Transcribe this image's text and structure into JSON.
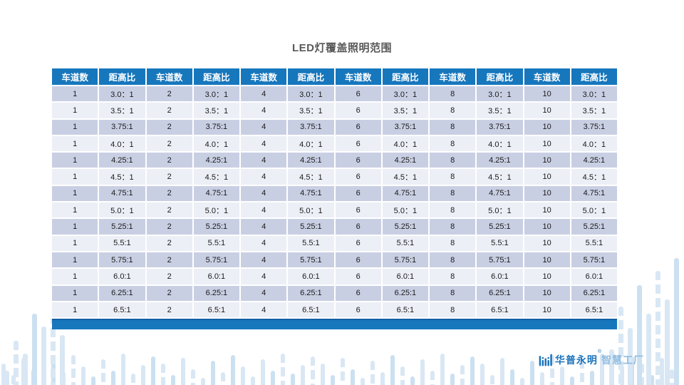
{
  "slide": {
    "title": "LED灯覆盖照明范围"
  },
  "table": {
    "column_headers": [
      "车道数",
      "距高比",
      "车道数",
      "距高比",
      "车道数",
      "距高比",
      "车道数",
      "距高比",
      "车道数",
      "距高比",
      "车道数",
      "距高比"
    ],
    "lane_counts": [
      "1",
      "2",
      "4",
      "6",
      "8",
      "10"
    ],
    "ratio_rows": [
      "3.0：1",
      "3.5：1",
      "3.75:1",
      "4.0：1",
      "4.25:1",
      "4.5：1",
      "4.75:1",
      "5.0：1",
      "5.25:1",
      "5.5:1",
      "5.75:1",
      "6.0:1",
      "6.25:1",
      "6.5:1"
    ]
  },
  "footer": {
    "brand_name": "华普永明",
    "registered_mark": "®",
    "brand_tagline": "智慧工厂"
  },
  "colors": {
    "header_bg": "#1777BD",
    "row_odd_bg": "#C9CFE3",
    "row_even_bg": "#EDEFF7",
    "footer_bar": "#1777BD",
    "accent_light": "#D9E7F4",
    "accent_light2": "#CBE0F1",
    "brand_blue": "#1B74BC",
    "brand_light_blue": "#90BCE0",
    "title_color": "#595959"
  }
}
